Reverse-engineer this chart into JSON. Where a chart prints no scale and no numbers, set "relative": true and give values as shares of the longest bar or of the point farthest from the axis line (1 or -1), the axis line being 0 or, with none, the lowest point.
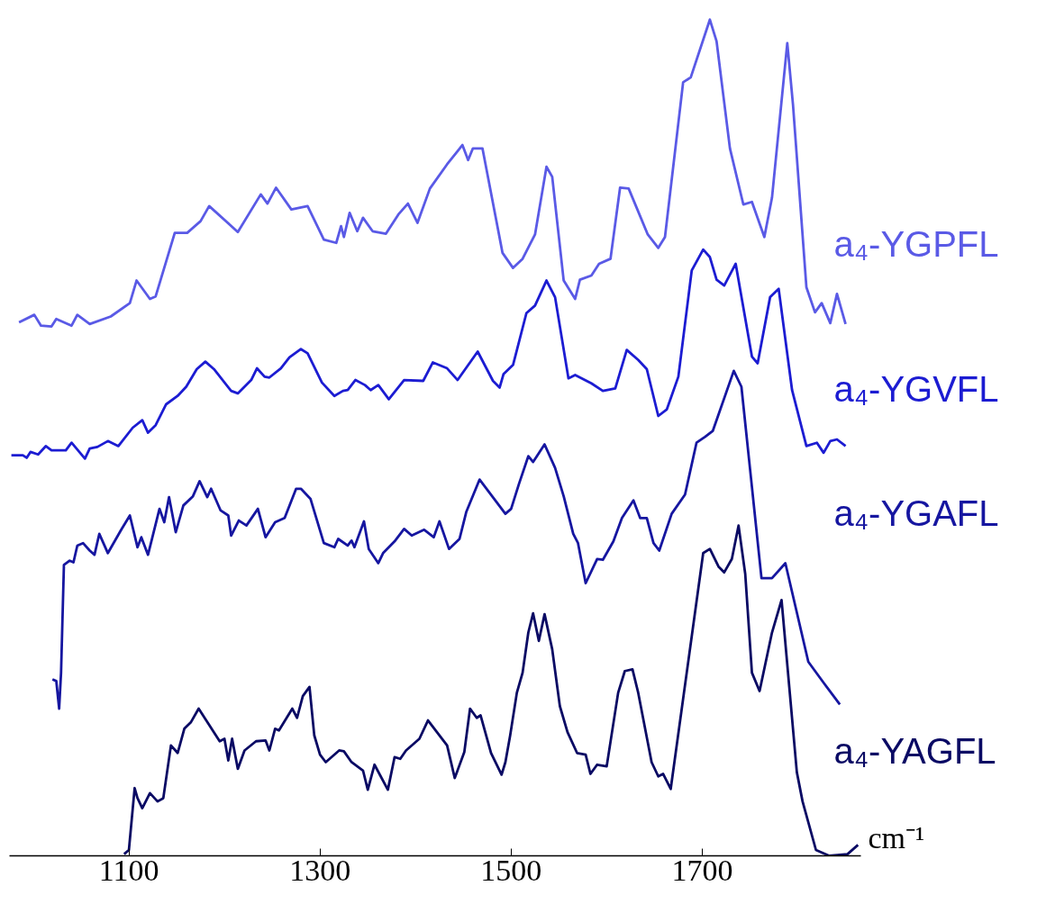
{
  "chart_data": {
    "type": "line",
    "relative": true,
    "xlabel": "cm⁻¹",
    "xlim": [
      975,
      1866
    ],
    "xticks": [
      1100,
      1300,
      1500,
      1700
    ],
    "series": [
      {
        "name": "a₄-YGPFL",
        "color": "#5a5ae6",
        "x": [
          985,
          1001,
          1008,
          1019,
          1024,
          1040,
          1046,
          1059,
          1081,
          1101,
          1108,
          1122,
          1128,
          1148,
          1161,
          1175,
          1184,
          1214,
          1238,
          1245,
          1254,
          1270,
          1287,
          1304,
          1317,
          1322,
          1325,
          1331,
          1339,
          1345,
          1355,
          1369,
          1382,
          1392,
          1402,
          1415,
          1433,
          1449,
          1455,
          1460,
          1470,
          1491,
          1502,
          1512,
          1525,
          1537,
          1543,
          1555,
          1567,
          1572,
          1584,
          1592,
          1604,
          1614,
          1623,
          1643,
          1654,
          1661,
          1680,
          1688,
          1708,
          1715,
          1729,
          1743,
          1752,
          1765,
          1773,
          1789,
          1795,
          1809,
          1818,
          1825,
          1834,
          1841,
          1850
        ],
        "values": [
          0.638,
          0.647,
          0.634,
          0.633,
          0.642,
          0.634,
          0.647,
          0.636,
          0.645,
          0.661,
          0.688,
          0.666,
          0.669,
          0.745,
          0.745,
          0.759,
          0.777,
          0.746,
          0.791,
          0.78,
          0.799,
          0.773,
          0.777,
          0.737,
          0.733,
          0.753,
          0.74,
          0.769,
          0.747,
          0.763,
          0.747,
          0.744,
          0.767,
          0.78,
          0.757,
          0.798,
          0.827,
          0.85,
          0.832,
          0.846,
          0.846,
          0.721,
          0.703,
          0.714,
          0.743,
          0.824,
          0.812,
          0.688,
          0.666,
          0.689,
          0.694,
          0.708,
          0.714,
          0.799,
          0.798,
          0.743,
          0.727,
          0.74,
          0.925,
          0.931,
          1.0,
          0.974,
          0.846,
          0.779,
          0.782,
          0.74,
          0.787,
          0.972,
          0.898,
          0.68,
          0.65,
          0.661,
          0.637,
          0.672,
          0.636
        ]
      },
      {
        "name": "a₄-YGVFL",
        "color": "#1c1cd2",
        "x": [
          977,
          989,
          993,
          997,
          1005,
          1013,
          1019,
          1034,
          1040,
          1054,
          1059,
          1067,
          1078,
          1089,
          1104,
          1114,
          1120,
          1128,
          1139,
          1151,
          1160,
          1171,
          1180,
          1189,
          1207,
          1214,
          1228,
          1234,
          1242,
          1247,
          1259,
          1268,
          1280,
          1287,
          1302,
          1315,
          1324,
          1329,
          1337,
          1347,
          1353,
          1361,
          1372,
          1388,
          1408,
          1418,
          1433,
          1444,
          1465,
          1481,
          1488,
          1492,
          1502,
          1516,
          1525,
          1537,
          1546,
          1560,
          1567,
          1584,
          1596,
          1609,
          1621,
          1633,
          1642,
          1654,
          1663,
          1675,
          1689,
          1701,
          1708,
          1715,
          1723,
          1735,
          1752,
          1758,
          1771,
          1780,
          1794,
          1809,
          1820,
          1827,
          1834,
          1841,
          1850
        ],
        "values": [
          0.479,
          0.479,
          0.476,
          0.483,
          0.48,
          0.49,
          0.485,
          0.485,
          0.494,
          0.475,
          0.487,
          0.489,
          0.496,
          0.49,
          0.512,
          0.521,
          0.506,
          0.515,
          0.54,
          0.55,
          0.561,
          0.582,
          0.591,
          0.582,
          0.556,
          0.553,
          0.569,
          0.583,
          0.573,
          0.572,
          0.583,
          0.596,
          0.606,
          0.601,
          0.566,
          0.55,
          0.556,
          0.557,
          0.569,
          0.563,
          0.557,
          0.563,
          0.546,
          0.569,
          0.568,
          0.59,
          0.583,
          0.569,
          0.603,
          0.568,
          0.56,
          0.576,
          0.587,
          0.649,
          0.658,
          0.688,
          0.668,
          0.571,
          0.575,
          0.565,
          0.556,
          0.559,
          0.605,
          0.593,
          0.582,
          0.526,
          0.534,
          0.573,
          0.7,
          0.725,
          0.716,
          0.689,
          0.682,
          0.708,
          0.597,
          0.589,
          0.668,
          0.678,
          0.557,
          0.49,
          0.494,
          0.482,
          0.496,
          0.498,
          0.49
        ]
      },
      {
        "name": "a₄-YGAFL",
        "color": "#1616a0",
        "x": [
          1020,
          1024,
          1027,
          1029,
          1032,
          1038,
          1042,
          1046,
          1052,
          1059,
          1064,
          1069,
          1078,
          1092,
          1101,
          1109,
          1113,
          1120,
          1132,
          1137,
          1142,
          1149,
          1157,
          1167,
          1174,
          1182,
          1186,
          1196,
          1204,
          1207,
          1215,
          1223,
          1235,
          1243,
          1253,
          1263,
          1275,
          1280,
          1290,
          1304,
          1315,
          1319,
          1329,
          1333,
          1336,
          1346,
          1351,
          1361,
          1366,
          1378,
          1388,
          1396,
          1409,
          1419,
          1425,
          1435,
          1446,
          1453,
          1467,
          1494,
          1500,
          1508,
          1518,
          1523,
          1535,
          1546,
          1555,
          1565,
          1570,
          1578,
          1590,
          1596,
          1607,
          1616,
          1628,
          1635,
          1642,
          1649,
          1655,
          1668,
          1682,
          1694,
          1703,
          1711,
          1733,
          1741,
          1762,
          1773,
          1787,
          1811,
          1827,
          1844
        ],
        "values": [
          0.211,
          0.209,
          0.176,
          0.219,
          0.348,
          0.353,
          0.351,
          0.371,
          0.374,
          0.365,
          0.36,
          0.385,
          0.362,
          0.39,
          0.407,
          0.369,
          0.381,
          0.36,
          0.415,
          0.399,
          0.429,
          0.387,
          0.419,
          0.43,
          0.448,
          0.429,
          0.439,
          0.413,
          0.407,
          0.383,
          0.401,
          0.395,
          0.415,
          0.381,
          0.399,
          0.404,
          0.439,
          0.439,
          0.427,
          0.374,
          0.369,
          0.379,
          0.371,
          0.377,
          0.369,
          0.4,
          0.367,
          0.35,
          0.362,
          0.376,
          0.391,
          0.383,
          0.39,
          0.381,
          0.4,
          0.367,
          0.379,
          0.411,
          0.45,
          0.409,
          0.415,
          0.444,
          0.478,
          0.471,
          0.492,
          0.464,
          0.43,
          0.385,
          0.374,
          0.326,
          0.355,
          0.354,
          0.376,
          0.404,
          0.425,
          0.404,
          0.404,
          0.374,
          0.365,
          0.409,
          0.432,
          0.494,
          0.501,
          0.508,
          0.58,
          0.561,
          0.332,
          0.332,
          0.35,
          0.232,
          0.207,
          0.181
        ]
      },
      {
        "name": "a₄-YAGFL",
        "color": "#0a0a64",
        "x": [
          1095,
          1100,
          1106,
          1109,
          1114,
          1122,
          1130,
          1136,
          1144,
          1151,
          1158,
          1165,
          1173,
          1195,
          1200,
          1204,
          1208,
          1214,
          1221,
          1233,
          1243,
          1247,
          1253,
          1257,
          1271,
          1276,
          1282,
          1289,
          1294,
          1300,
          1306,
          1320,
          1325,
          1333,
          1345,
          1350,
          1357,
          1371,
          1378,
          1384,
          1390,
          1404,
          1413,
          1433,
          1441,
          1451,
          1457,
          1464,
          1468,
          1479,
          1490,
          1494,
          1499,
          1506,
          1512,
          1518,
          1523,
          1529,
          1535,
          1543,
          1551,
          1559,
          1569,
          1578,
          1583,
          1590,
          1600,
          1612,
          1619,
          1627,
          1633,
          1647,
          1654,
          1659,
          1667,
          1701,
          1708,
          1717,
          1723,
          1731,
          1738,
          1745,
          1752,
          1760,
          1773,
          1783,
          1799,
          1805,
          1819,
          1833,
          1852,
          1863
        ],
        "values": [
          0.002,
          0.007,
          0.081,
          0.069,
          0.057,
          0.075,
          0.065,
          0.069,
          0.132,
          0.123,
          0.152,
          0.16,
          0.176,
          0.137,
          0.14,
          0.114,
          0.14,
          0.104,
          0.126,
          0.137,
          0.138,
          0.126,
          0.152,
          0.15,
          0.176,
          0.165,
          0.191,
          0.202,
          0.144,
          0.121,
          0.112,
          0.126,
          0.125,
          0.112,
          0.102,
          0.079,
          0.109,
          0.079,
          0.118,
          0.116,
          0.126,
          0.14,
          0.162,
          0.132,
          0.093,
          0.124,
          0.176,
          0.165,
          0.168,
          0.123,
          0.097,
          0.112,
          0.144,
          0.195,
          0.219,
          0.267,
          0.29,
          0.257,
          0.289,
          0.247,
          0.179,
          0.148,
          0.123,
          0.121,
          0.098,
          0.109,
          0.107,
          0.195,
          0.221,
          0.223,
          0.195,
          0.112,
          0.095,
          0.098,
          0.08,
          0.362,
          0.367,
          0.346,
          0.339,
          0.355,
          0.395,
          0.337,
          0.219,
          0.197,
          0.267,
          0.306,
          0.1,
          0.065,
          0.007,
          0.0,
          0.002,
          0.013
        ]
      }
    ]
  }
}
